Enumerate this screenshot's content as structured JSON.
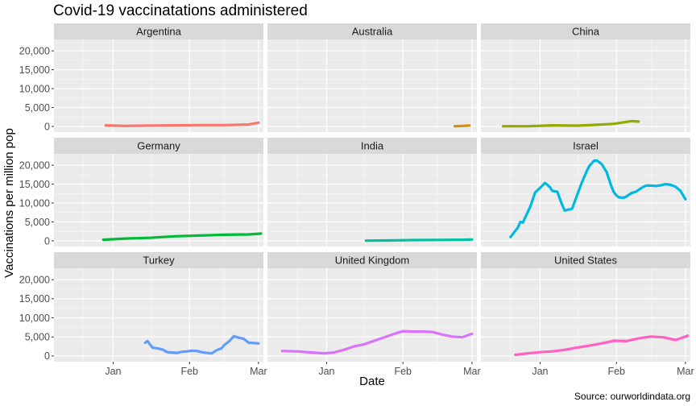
{
  "chart_data": {
    "type": "line",
    "title": "Covid-19 vaccinatations administered",
    "xlabel": "Date",
    "ylabel": "Vaccinations per million pop",
    "caption": "Source: ourworldindata.org",
    "ylim": [
      -1500,
      23000
    ],
    "y_ticks": [
      0,
      5000,
      10000,
      15000,
      20000
    ],
    "y_tick_labels": [
      "0",
      "5,000",
      "10,000",
      "15,000",
      "20,000"
    ],
    "x_tick_labels": [
      "Jan",
      "Feb",
      "Mar"
    ],
    "x_tick_days": [
      0,
      31,
      59
    ],
    "x_range_days": [
      -24,
      61
    ],
    "grid": true,
    "legend": "none",
    "facet_layout": "3x3",
    "series": [
      {
        "name": "Argentina",
        "color": "#F8766D",
        "x": [
          -3,
          5,
          15,
          25,
          35,
          45,
          55,
          59
        ],
        "y": [
          300,
          150,
          250,
          300,
          350,
          350,
          500,
          1000
        ]
      },
      {
        "name": "Australia",
        "color": "#D39200",
        "x": [
          52,
          55,
          58
        ],
        "y": [
          50,
          150,
          250
        ]
      },
      {
        "name": "China",
        "color": "#93AA00",
        "x": [
          -15,
          -5,
          5,
          15,
          25,
          30,
          37,
          40
        ],
        "y": [
          50,
          50,
          300,
          200,
          500,
          700,
          1400,
          1300
        ]
      },
      {
        "name": "Germany",
        "color": "#00BA38",
        "x": [
          -4,
          5,
          15,
          25,
          35,
          45,
          55,
          60
        ],
        "y": [
          300,
          600,
          800,
          1200,
          1400,
          1600,
          1700,
          1900
        ]
      },
      {
        "name": "India",
        "color": "#00C19F",
        "x": [
          16,
          25,
          35,
          45,
          55,
          59
        ],
        "y": [
          50,
          100,
          200,
          250,
          300,
          350
        ]
      },
      {
        "name": "Israel",
        "color": "#00B9E3",
        "x": [
          -12,
          -9,
          -8,
          -7,
          -4,
          -2,
          0,
          2,
          3,
          4,
          5,
          7,
          8,
          9,
          10,
          11,
          12,
          13,
          15,
          17,
          19,
          20,
          21,
          22,
          23,
          24,
          25,
          27,
          28,
          29,
          30,
          31,
          32,
          34,
          35,
          37,
          39,
          40,
          42,
          43,
          45,
          47,
          49,
          51,
          53,
          55,
          57,
          59
        ],
        "y": [
          1000,
          3500,
          5000,
          4800,
          9000,
          12800,
          14000,
          15300,
          14800,
          14200,
          13200,
          13000,
          11200,
          9500,
          8000,
          8200,
          8300,
          8500,
          12000,
          15500,
          18500,
          19800,
          20500,
          21200,
          21200,
          20800,
          20300,
          18200,
          16200,
          14300,
          12800,
          12000,
          11500,
          11400,
          11700,
          12600,
          13000,
          13500,
          14300,
          14600,
          14600,
          14500,
          14700,
          15000,
          14800,
          14300,
          13200,
          11000
        ]
      },
      {
        "name": "Turkey",
        "color": "#619CFF",
        "x": [
          13,
          14,
          15,
          16,
          18,
          20,
          22,
          24,
          26,
          28,
          30,
          32,
          34,
          36,
          38,
          40,
          42,
          44,
          45,
          47,
          49,
          51,
          53,
          55,
          57,
          59
        ],
        "y": [
          3500,
          3900,
          3000,
          2200,
          2000,
          1700,
          1000,
          900,
          800,
          1100,
          1200,
          1400,
          1300,
          1000,
          800,
          700,
          1500,
          2000,
          2800,
          3800,
          5200,
          4800,
          4500,
          3500,
          3400,
          3300
        ]
      },
      {
        "name": "United Kingdom",
        "color": "#DB72FB",
        "x": [
          -18,
          -12,
          -6,
          -1,
          3,
          7,
          11,
          15,
          19,
          23,
          27,
          31,
          35,
          39,
          43,
          47,
          51,
          55,
          59
        ],
        "y": [
          1300,
          1200,
          900,
          700,
          900,
          1600,
          2500,
          3000,
          3900,
          4800,
          5700,
          6500,
          6400,
          6400,
          6300,
          5600,
          5100,
          4900,
          5800
        ]
      },
      {
        "name": "United States",
        "color": "#FF61C3",
        "x": [
          -10,
          -5,
          0,
          5,
          10,
          15,
          20,
          25,
          30,
          35,
          40,
          45,
          50,
          55,
          60
        ],
        "y": [
          300,
          700,
          1000,
          1200,
          1600,
          2200,
          2700,
          3300,
          4000,
          3900,
          4600,
          5100,
          4900,
          4200,
          5300
        ]
      }
    ]
  }
}
